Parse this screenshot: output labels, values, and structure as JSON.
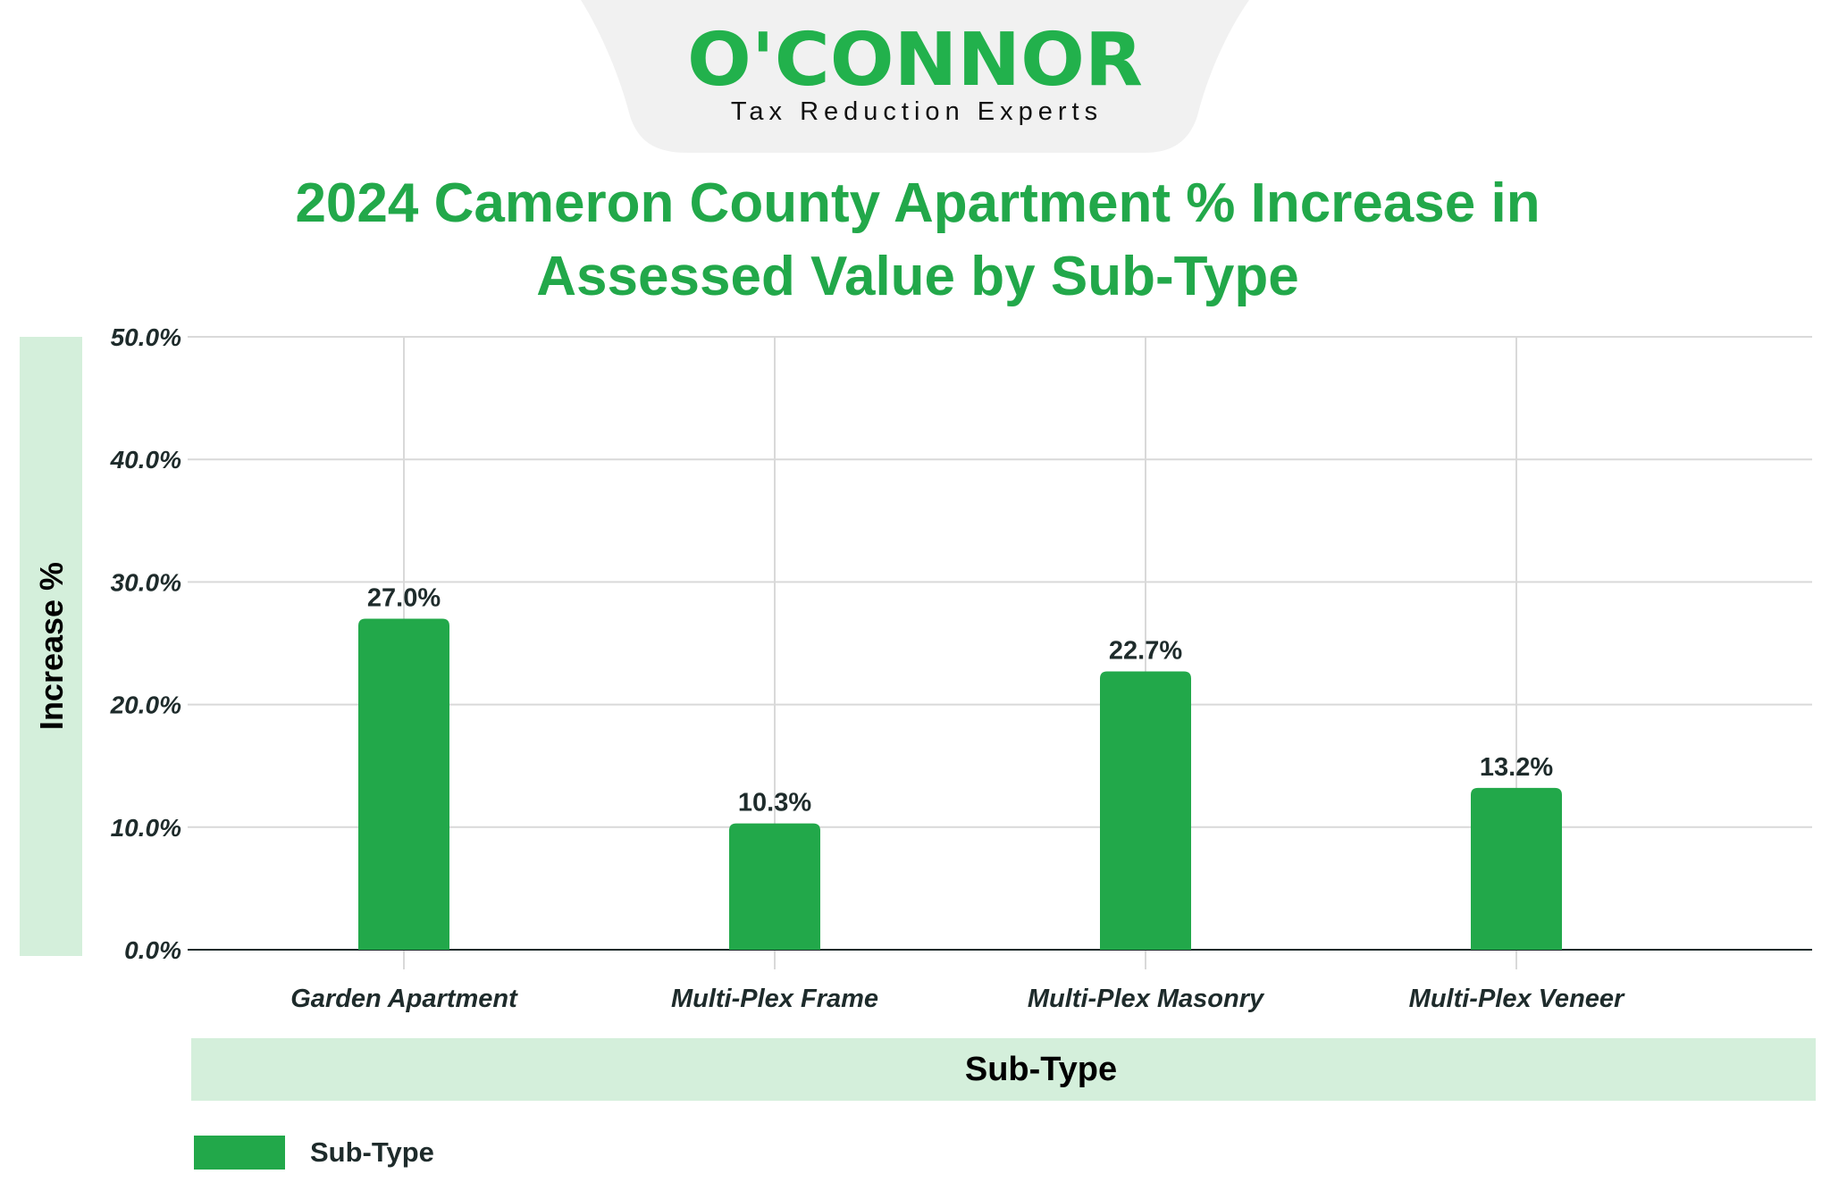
{
  "logo": {
    "name": "O'CONNOR",
    "tagline": "Tax Reduction Experts"
  },
  "colors": {
    "bar": "#22a84a",
    "title": "#22a84a",
    "axis_band": "#d4efdb",
    "grid": "#d9d9d9",
    "text": "#1e2b2b",
    "logo_bg": "#f1f1f1"
  },
  "chart_data": {
    "type": "bar",
    "title_lines": [
      "2024 Cameron County Apartment % Increase in",
      "Assessed Value by Sub-Type"
    ],
    "xlabel": "Sub-Type",
    "ylabel": "Increase %",
    "categories": [
      "Garden Apartment",
      "Multi-Plex Frame",
      "Multi-Plex Masonry",
      "Multi-Plex Veneer"
    ],
    "series": [
      {
        "name": "Sub-Type",
        "values": [
          27.0,
          10.3,
          22.7,
          13.2
        ]
      }
    ],
    "data_labels": [
      "27.0%",
      "10.3%",
      "22.7%",
      "13.2%"
    ],
    "ylim": [
      0,
      50
    ],
    "yticks": [
      0,
      10,
      20,
      30,
      40,
      50
    ],
    "ytick_labels": [
      "0.0%",
      "10.0%",
      "20.0%",
      "30.0%",
      "40.0%",
      "50.0%"
    ],
    "grid": true,
    "legend_placement": "bottom-left"
  }
}
